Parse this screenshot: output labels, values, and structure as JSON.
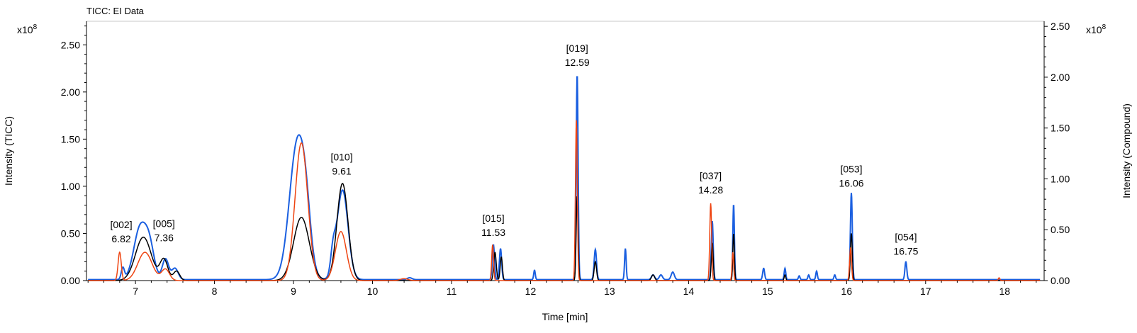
{
  "window": {
    "title": "TICC: EI Data"
  },
  "chart_data": {
    "type": "line",
    "title": "",
    "xlabel": "Time [min]",
    "ylabel_left": "Intensity (TICC)",
    "ylabel_right": "Intensity (Compound)",
    "exponent_left": "x10",
    "exponent_right": "x10",
    "exponent_power": "8",
    "xlim": [
      6.38,
      18.5
    ],
    "ylim": [
      0,
      2.75
    ],
    "xticks": [
      7,
      8,
      9,
      10,
      11,
      12,
      13,
      14,
      15,
      16,
      17,
      18
    ],
    "xtick_labels": [
      "7",
      "8",
      "9",
      "10",
      "11",
      "12",
      "13",
      "14",
      "15",
      "16",
      "17",
      "18"
    ],
    "ylim_right": [
      0,
      2.55
    ],
    "yticks": [
      0,
      0.5,
      1.0,
      1.5,
      2.0,
      2.5
    ],
    "ytick_labels": [
      "0.00",
      "0.50",
      "1.00",
      "1.50",
      "2.00",
      "2.50"
    ],
    "grid": false,
    "peak_labels": [
      {
        "id": "[002]",
        "rt": "6.82",
        "x": 6.82,
        "y": 0.33
      },
      {
        "id": "[005]",
        "rt": "7.36",
        "x": 7.36,
        "y": 0.34
      },
      {
        "id": "[010]",
        "rt": "9.61",
        "x": 9.61,
        "y": 1.05
      },
      {
        "id": "[015]",
        "rt": "11.53",
        "x": 11.53,
        "y": 0.4
      },
      {
        "id": "[019]",
        "rt": "12.59",
        "x": 12.59,
        "y": 2.2
      },
      {
        "id": "[037]",
        "rt": "14.28",
        "x": 14.28,
        "y": 0.85
      },
      {
        "id": "[053]",
        "rt": "16.06",
        "x": 16.06,
        "y": 0.92
      },
      {
        "id": "[054]",
        "rt": "16.75",
        "x": 16.75,
        "y": 0.2
      }
    ],
    "series": [
      {
        "color": "#1a5fe0",
        "baseline": 0.01,
        "peaks": [
          [
            6.84,
            0.02,
            0.12
          ],
          [
            7.06,
            0.08,
            0.55
          ],
          [
            7.18,
            0.06,
            0.3
          ],
          [
            7.38,
            0.04,
            0.22
          ],
          [
            7.5,
            0.04,
            0.12
          ],
          [
            9.05,
            0.1,
            1.45
          ],
          [
            9.16,
            0.06,
            0.35
          ],
          [
            9.5,
            0.03,
            0.22
          ],
          [
            9.62,
            0.07,
            0.95
          ],
          [
            10.47,
            0.03,
            0.02
          ],
          [
            11.53,
            0.014,
            0.37
          ],
          [
            11.62,
            0.014,
            0.33
          ],
          [
            12.05,
            0.01,
            0.1
          ],
          [
            12.59,
            0.012,
            2.18
          ],
          [
            12.82,
            0.015,
            0.32
          ],
          [
            13.2,
            0.01,
            0.33
          ],
          [
            13.55,
            0.02,
            0.05
          ],
          [
            13.65,
            0.02,
            0.05
          ],
          [
            13.8,
            0.02,
            0.08
          ],
          [
            14.3,
            0.012,
            0.62
          ],
          [
            14.57,
            0.01,
            0.8
          ],
          [
            14.95,
            0.012,
            0.12
          ],
          [
            15.22,
            0.01,
            0.12
          ],
          [
            15.4,
            0.01,
            0.04
          ],
          [
            15.52,
            0.01,
            0.05
          ],
          [
            15.62,
            0.01,
            0.09
          ],
          [
            15.85,
            0.01,
            0.05
          ],
          [
            16.06,
            0.012,
            0.92
          ],
          [
            16.75,
            0.012,
            0.19
          ]
        ]
      },
      {
        "color": "#000000",
        "baseline": 0.0,
        "peaks": [
          [
            7.1,
            0.1,
            0.46
          ],
          [
            7.36,
            0.05,
            0.22
          ],
          [
            7.52,
            0.04,
            0.1
          ],
          [
            9.1,
            0.1,
            0.67
          ],
          [
            9.62,
            0.07,
            1.03
          ],
          [
            11.55,
            0.016,
            0.3
          ],
          [
            11.63,
            0.014,
            0.25
          ],
          [
            12.59,
            0.012,
            0.9
          ],
          [
            12.82,
            0.015,
            0.2
          ],
          [
            13.55,
            0.02,
            0.06
          ],
          [
            14.3,
            0.012,
            0.4
          ],
          [
            14.57,
            0.01,
            0.5
          ],
          [
            15.22,
            0.01,
            0.06
          ],
          [
            16.06,
            0.012,
            0.5
          ]
        ]
      },
      {
        "color": "#ee4411",
        "baseline": 0.0,
        "peaks": [
          [
            6.8,
            0.02,
            0.3
          ],
          [
            7.12,
            0.09,
            0.3
          ],
          [
            7.38,
            0.05,
            0.12
          ],
          [
            9.1,
            0.08,
            1.46
          ],
          [
            9.6,
            0.07,
            0.52
          ],
          [
            10.4,
            0.05,
            0.02
          ],
          [
            11.52,
            0.012,
            0.38
          ],
          [
            12.58,
            0.012,
            1.7
          ],
          [
            14.28,
            0.012,
            0.82
          ],
          [
            14.56,
            0.01,
            0.3
          ],
          [
            16.05,
            0.012,
            0.35
          ],
          [
            17.93,
            0.01,
            0.03
          ]
        ]
      }
    ]
  }
}
